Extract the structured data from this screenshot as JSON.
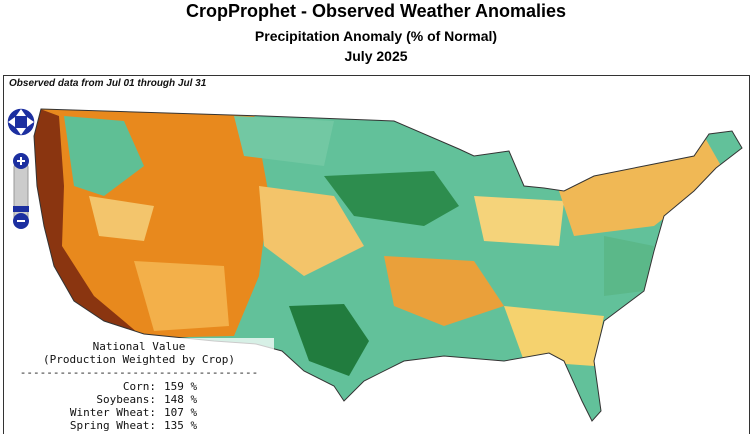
{
  "header": {
    "title": "CropProphet - Observed Weather Anomalies",
    "subtitle": "Precipitation Anomaly (% of Normal)",
    "period": "July 2025"
  },
  "map": {
    "caption": "Observed data from Jul 01 through Jul 31"
  },
  "national": {
    "title": "National Value",
    "subtitle": "(Production Weighted by Crop)",
    "divider": "------------------------------------",
    "rows": [
      [
        "Corn:",
        "159 %"
      ],
      [
        "Soybeans:",
        "148 %"
      ],
      [
        "Winter Wheat:",
        "107 %"
      ],
      [
        "Spring Wheat:",
        "135 %"
      ]
    ]
  }
}
